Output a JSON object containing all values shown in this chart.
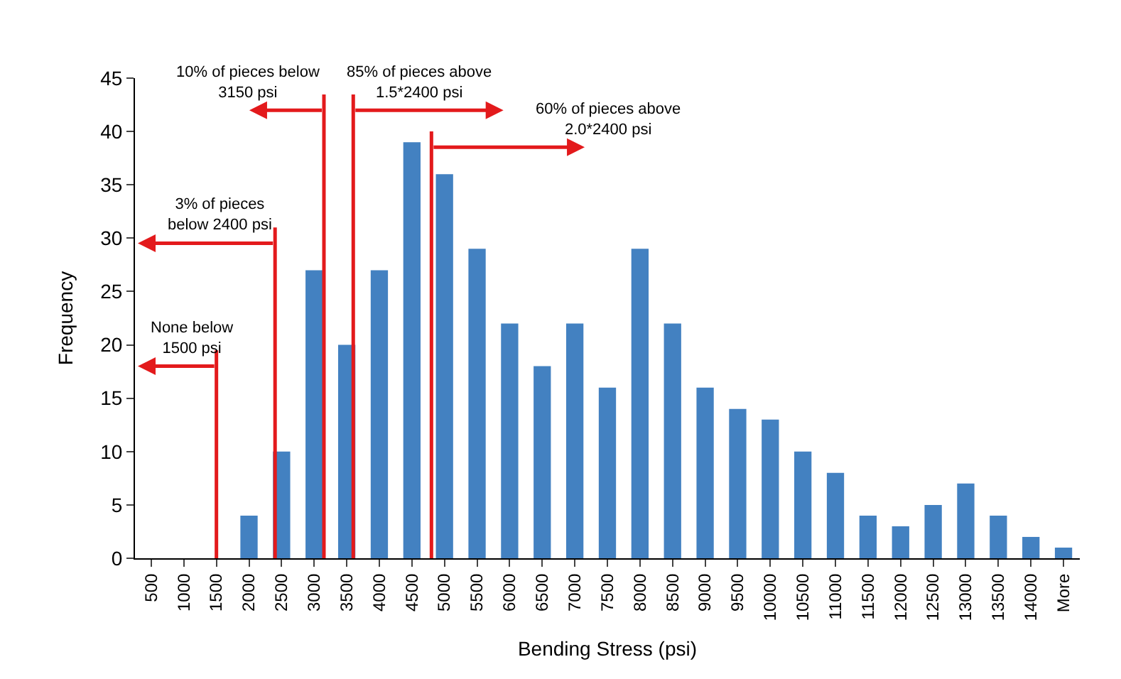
{
  "chart_data": {
    "type": "bar",
    "xlabel": "Bending Stress (psi)",
    "ylabel": "Frequency",
    "x": [
      500,
      1000,
      1500,
      2000,
      2500,
      3000,
      3500,
      4000,
      4500,
      5000,
      5500,
      6000,
      6500,
      7000,
      7500,
      8000,
      8500,
      9000,
      9500,
      10000,
      10500,
      11000,
      11500,
      12000,
      12500,
      13000,
      13500,
      14000,
      14500
    ],
    "values": [
      0,
      0,
      0,
      4,
      10,
      27,
      20,
      27,
      39,
      36,
      29,
      22,
      18,
      22,
      16,
      29,
      22,
      16,
      14,
      13,
      10,
      8,
      4,
      3,
      5,
      7,
      4,
      2,
      1
    ],
    "color": "#4381c1",
    "xlim": [
      250,
      14750
    ],
    "xticks": [
      500,
      1000,
      1500,
      2000,
      2500,
      3000,
      3500,
      4000,
      4500,
      5000,
      5500,
      6000,
      6500,
      7000,
      7500,
      8000,
      8500,
      9000,
      9500,
      10000,
      10500,
      11000,
      11500,
      12000,
      12500,
      13000,
      13500,
      14000,
      {
        "value": 14500,
        "label": "More"
      }
    ],
    "ylim": [
      0,
      45
    ],
    "yticks": [
      0,
      5,
      10,
      15,
      20,
      25,
      30,
      35,
      40,
      45
    ],
    "grid": false,
    "ref_lines": [
      {
        "axis": "x",
        "value": 1500,
        "color": "#e31a1c",
        "label": "None below\n1500 psi"
      },
      {
        "axis": "x",
        "value": 2400,
        "color": "#e31a1c",
        "label": "3% of pieces\nbelow 2400 psi"
      },
      {
        "axis": "x",
        "value": 3150,
        "color": "#e31a1c",
        "label": "10% of pieces below\n3150 psi"
      },
      {
        "axis": "x",
        "value": 3600,
        "color": "#e31a1c",
        "label": "85% of pieces above\n1.5*2400 psi"
      },
      {
        "axis": "x",
        "value": 4800,
        "color": "#e31a1c",
        "label": "60% of pieces above\n2.0*2400 psi"
      }
    ]
  }
}
